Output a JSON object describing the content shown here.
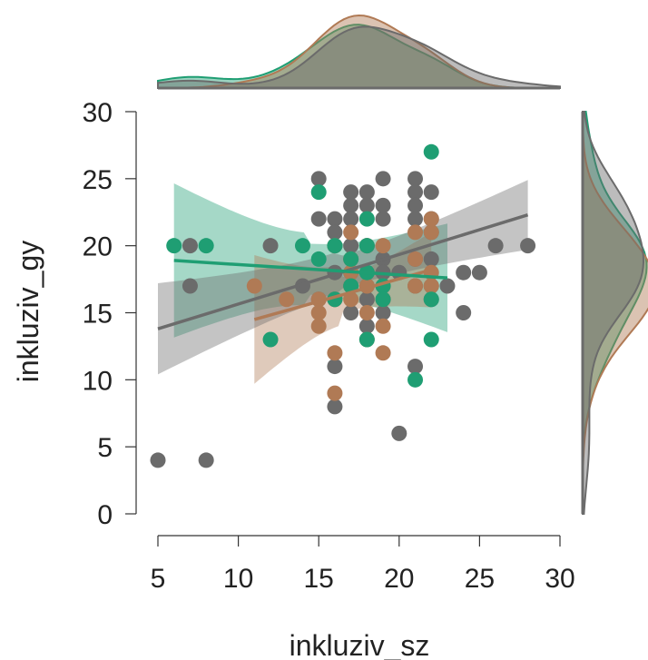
{
  "chart_data": {
    "type": "scatter",
    "title": "",
    "xlabel": "inkluziv_sz",
    "ylabel": "inkluziv_gy",
    "xlim": [
      5,
      30
    ],
    "ylim": [
      0,
      30
    ],
    "xticks": [
      5,
      10,
      15,
      20,
      25,
      30
    ],
    "yticks": [
      0,
      5,
      10,
      15,
      20,
      25,
      30
    ],
    "grid": false,
    "legend": "none",
    "marginal_plots": "density",
    "series": [
      {
        "color": "#6b6b6b",
        "points": [
          [
            5,
            4
          ],
          [
            7,
            20
          ],
          [
            7,
            17
          ],
          [
            8,
            4
          ],
          [
            12,
            20
          ],
          [
            14,
            17
          ],
          [
            15,
            25
          ],
          [
            15,
            22
          ],
          [
            15,
            16
          ],
          [
            16,
            22
          ],
          [
            16,
            21
          ],
          [
            16,
            20
          ],
          [
            16,
            18
          ],
          [
            16,
            16
          ],
          [
            16,
            11
          ],
          [
            16,
            8
          ],
          [
            17,
            24
          ],
          [
            17,
            23
          ],
          [
            17,
            22
          ],
          [
            17,
            20
          ],
          [
            17,
            19
          ],
          [
            17,
            18
          ],
          [
            17,
            17
          ],
          [
            17,
            15
          ],
          [
            18,
            24
          ],
          [
            18,
            23
          ],
          [
            18,
            20
          ],
          [
            18,
            18
          ],
          [
            18,
            17
          ],
          [
            18,
            16
          ],
          [
            18,
            14
          ],
          [
            19,
            25
          ],
          [
            19,
            23
          ],
          [
            19,
            22
          ],
          [
            19,
            19
          ],
          [
            19,
            18
          ],
          [
            19,
            16
          ],
          [
            19,
            15
          ],
          [
            20,
            18
          ],
          [
            20,
            6
          ],
          [
            21,
            25
          ],
          [
            21,
            24
          ],
          [
            21,
            23
          ],
          [
            21,
            22
          ],
          [
            21,
            19
          ],
          [
            21,
            17
          ],
          [
            21,
            11
          ],
          [
            22,
            24
          ],
          [
            22,
            22
          ],
          [
            22,
            21
          ],
          [
            22,
            19
          ],
          [
            22,
            17
          ],
          [
            22,
            16
          ],
          [
            23,
            17
          ],
          [
            24,
            18
          ],
          [
            24,
            15
          ],
          [
            25,
            18
          ],
          [
            26,
            20
          ],
          [
            28,
            20
          ]
        ],
        "fit": {
          "x": [
            5,
            28
          ],
          "y": [
            13.8,
            22.3
          ],
          "ci_lower": [
            10.4,
            19.8
          ],
          "ci_upper": [
            17.2,
            25.0
          ]
        }
      },
      {
        "color": "#b07a55",
        "points": [
          [
            11,
            17
          ],
          [
            13,
            16
          ],
          [
            15,
            16
          ],
          [
            15,
            15
          ],
          [
            15,
            14
          ],
          [
            16,
            20
          ],
          [
            16,
            16
          ],
          [
            16,
            12
          ],
          [
            16,
            9
          ],
          [
            17,
            21
          ],
          [
            17,
            19
          ],
          [
            17,
            18
          ],
          [
            17,
            17
          ],
          [
            17,
            16
          ],
          [
            18,
            20
          ],
          [
            18,
            17
          ],
          [
            18,
            15
          ],
          [
            18,
            13
          ],
          [
            19,
            20
          ],
          [
            19,
            17
          ],
          [
            19,
            16
          ],
          [
            19,
            14
          ],
          [
            19,
            12
          ],
          [
            21,
            21
          ],
          [
            21,
            19
          ],
          [
            21,
            17
          ],
          [
            22,
            22
          ],
          [
            22,
            21
          ],
          [
            22,
            18
          ],
          [
            22,
            17
          ]
        ],
        "fit": {
          "x": [
            11,
            22
          ],
          "y": [
            14.5,
            18.2
          ],
          "ci_lower": [
            9.5,
            15.4
          ],
          "ci_upper": [
            19.1,
            21.0
          ]
        }
      },
      {
        "color": "#1f9e73",
        "points": [
          [
            6,
            20
          ],
          [
            8,
            20
          ],
          [
            12,
            13
          ],
          [
            14,
            20
          ],
          [
            15,
            24
          ],
          [
            15,
            19
          ],
          [
            16,
            20
          ],
          [
            16,
            16
          ],
          [
            17,
            19
          ],
          [
            17,
            17
          ],
          [
            18,
            22
          ],
          [
            18,
            20
          ],
          [
            18,
            18
          ],
          [
            18,
            13
          ],
          [
            19,
            17
          ],
          [
            19,
            16
          ],
          [
            21,
            10
          ],
          [
            22,
            27
          ],
          [
            22,
            16
          ],
          [
            22,
            13
          ]
        ],
        "fit": {
          "x": [
            6,
            23
          ],
          "y": [
            18.9,
            17.6
          ],
          "ci_lower": [
            13.2,
            13.1
          ],
          "ci_upper": [
            24.7,
            21.2
          ]
        }
      }
    ]
  }
}
